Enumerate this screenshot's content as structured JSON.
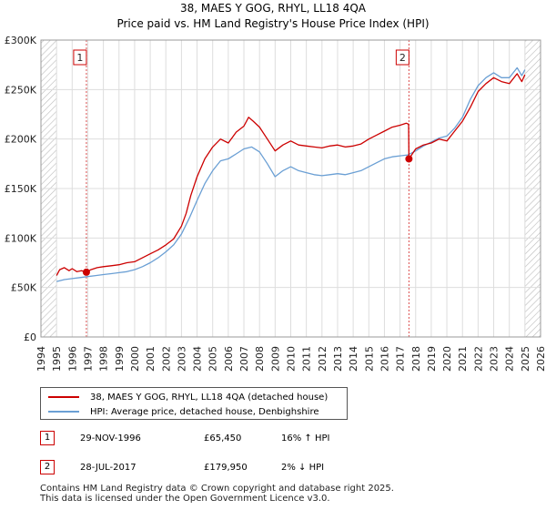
{
  "chart_data": {
    "type": "line",
    "title": "38, MAES Y GOG, RHYL, LL18 4QA",
    "subtitle": "Price paid vs. HM Land Registry's House Price Index (HPI)",
    "xlim": [
      1994,
      2026
    ],
    "ylim": [
      0,
      300000
    ],
    "x_ticks": [
      "1994",
      "1995",
      "1996",
      "1997",
      "1998",
      "1999",
      "2000",
      "2001",
      "2002",
      "2003",
      "2004",
      "2005",
      "2006",
      "2007",
      "2008",
      "2009",
      "2010",
      "2011",
      "2012",
      "2013",
      "2014",
      "2015",
      "2016",
      "2017",
      "2018",
      "2019",
      "2020",
      "2021",
      "2022",
      "2023",
      "2024",
      "2025",
      "2026"
    ],
    "y_ticks": [
      {
        "value": 0,
        "label": "£0"
      },
      {
        "value": 50000,
        "label": "£50K"
      },
      {
        "value": 100000,
        "label": "£100K"
      },
      {
        "value": 150000,
        "label": "£150K"
      },
      {
        "value": 200000,
        "label": "£200K"
      },
      {
        "value": 250000,
        "label": "£250K"
      },
      {
        "value": 300000,
        "label": "£300K"
      }
    ],
    "hatched_before": 1995,
    "hatched_after": 2025,
    "series": [
      {
        "name": "38, MAES Y GOG, RHYL, LL18 4QA (detached house)",
        "color": "#cc0000",
        "points": [
          [
            1995.0,
            62000
          ],
          [
            1995.2,
            68000
          ],
          [
            1995.5,
            70000
          ],
          [
            1995.8,
            67000
          ],
          [
            1996.0,
            69000
          ],
          [
            1996.3,
            66000
          ],
          [
            1996.6,
            67000
          ],
          [
            1996.91,
            65450
          ],
          [
            1997.2,
            68000
          ],
          [
            1997.6,
            70000
          ],
          [
            1998.0,
            71000
          ],
          [
            1998.5,
            72000
          ],
          [
            1999.0,
            73000
          ],
          [
            1999.5,
            75000
          ],
          [
            2000.0,
            76000
          ],
          [
            2000.5,
            80000
          ],
          [
            2001.0,
            84000
          ],
          [
            2001.5,
            88000
          ],
          [
            2002.0,
            93000
          ],
          [
            2002.5,
            99000
          ],
          [
            2003.0,
            112000
          ],
          [
            2003.3,
            125000
          ],
          [
            2003.6,
            143000
          ],
          [
            2004.0,
            162000
          ],
          [
            2004.5,
            180000
          ],
          [
            2005.0,
            192000
          ],
          [
            2005.5,
            200000
          ],
          [
            2006.0,
            196000
          ],
          [
            2006.5,
            207000
          ],
          [
            2007.0,
            213000
          ],
          [
            2007.3,
            222000
          ],
          [
            2007.6,
            218000
          ],
          [
            2008.0,
            212000
          ],
          [
            2008.5,
            200000
          ],
          [
            2009.0,
            188000
          ],
          [
            2009.5,
            194000
          ],
          [
            2010.0,
            198000
          ],
          [
            2010.5,
            194000
          ],
          [
            2011.0,
            193000
          ],
          [
            2011.5,
            192000
          ],
          [
            2012.0,
            191000
          ],
          [
            2012.5,
            193000
          ],
          [
            2013.0,
            194000
          ],
          [
            2013.5,
            192000
          ],
          [
            2014.0,
            193000
          ],
          [
            2014.5,
            195000
          ],
          [
            2015.0,
            200000
          ],
          [
            2015.5,
            204000
          ],
          [
            2016.0,
            208000
          ],
          [
            2016.5,
            212000
          ],
          [
            2017.0,
            214000
          ],
          [
            2017.4,
            216000
          ],
          [
            2017.55,
            215000
          ],
          [
            2017.57,
            179950
          ],
          [
            2018.0,
            190000
          ],
          [
            2018.5,
            194000
          ],
          [
            2019.0,
            196000
          ],
          [
            2019.5,
            200000
          ],
          [
            2020.0,
            198000
          ],
          [
            2020.5,
            208000
          ],
          [
            2021.0,
            218000
          ],
          [
            2021.5,
            232000
          ],
          [
            2022.0,
            248000
          ],
          [
            2022.5,
            256000
          ],
          [
            2023.0,
            262000
          ],
          [
            2023.5,
            258000
          ],
          [
            2024.0,
            256000
          ],
          [
            2024.5,
            266000
          ],
          [
            2024.8,
            258000
          ],
          [
            2025.0,
            265000
          ]
        ]
      },
      {
        "name": "HPI: Average price, detached house, Denbighshire",
        "color": "#6a9fd4",
        "points": [
          [
            1995.0,
            56000
          ],
          [
            1995.5,
            58000
          ],
          [
            1996.0,
            59000
          ],
          [
            1996.5,
            60000
          ],
          [
            1997.0,
            61000
          ],
          [
            1997.5,
            62000
          ],
          [
            1998.0,
            63000
          ],
          [
            1998.5,
            64000
          ],
          [
            1999.0,
            65000
          ],
          [
            1999.5,
            66000
          ],
          [
            2000.0,
            68000
          ],
          [
            2000.5,
            71000
          ],
          [
            2001.0,
            75000
          ],
          [
            2001.5,
            80000
          ],
          [
            2002.0,
            86000
          ],
          [
            2002.5,
            93000
          ],
          [
            2003.0,
            104000
          ],
          [
            2003.5,
            120000
          ],
          [
            2004.0,
            138000
          ],
          [
            2004.5,
            155000
          ],
          [
            2005.0,
            168000
          ],
          [
            2005.5,
            178000
          ],
          [
            2006.0,
            180000
          ],
          [
            2006.5,
            185000
          ],
          [
            2007.0,
            190000
          ],
          [
            2007.5,
            192000
          ],
          [
            2008.0,
            187000
          ],
          [
            2008.5,
            175000
          ],
          [
            2009.0,
            162000
          ],
          [
            2009.5,
            168000
          ],
          [
            2010.0,
            172000
          ],
          [
            2010.5,
            168000
          ],
          [
            2011.0,
            166000
          ],
          [
            2011.5,
            164000
          ],
          [
            2012.0,
            163000
          ],
          [
            2012.5,
            164000
          ],
          [
            2013.0,
            165000
          ],
          [
            2013.5,
            164000
          ],
          [
            2014.0,
            166000
          ],
          [
            2014.5,
            168000
          ],
          [
            2015.0,
            172000
          ],
          [
            2015.5,
            176000
          ],
          [
            2016.0,
            180000
          ],
          [
            2016.5,
            182000
          ],
          [
            2017.0,
            183000
          ],
          [
            2017.5,
            184000
          ],
          [
            2018.0,
            188000
          ],
          [
            2018.5,
            193000
          ],
          [
            2019.0,
            197000
          ],
          [
            2019.5,
            201000
          ],
          [
            2020.0,
            203000
          ],
          [
            2020.5,
            211000
          ],
          [
            2021.0,
            222000
          ],
          [
            2021.5,
            240000
          ],
          [
            2022.0,
            254000
          ],
          [
            2022.5,
            262000
          ],
          [
            2023.0,
            267000
          ],
          [
            2023.5,
            262000
          ],
          [
            2024.0,
            262000
          ],
          [
            2024.5,
            272000
          ],
          [
            2024.8,
            264000
          ],
          [
            2025.0,
            270000
          ]
        ]
      }
    ],
    "annotations": [
      {
        "label": "1",
        "x": 1996.91,
        "y": 65450
      },
      {
        "label": "2",
        "x": 2017.57,
        "y": 179950
      }
    ]
  },
  "legend": {
    "property_label": "38, MAES Y GOG, RHYL, LL18 4QA (detached house)",
    "hpi_label": "HPI: Average price, detached house, Denbighshire"
  },
  "sales": [
    {
      "num": "1",
      "date": "29-NOV-1996",
      "price": "£65,450",
      "hpi": "16% ↑ HPI"
    },
    {
      "num": "2",
      "date": "28-JUL-2017",
      "price": "£179,950",
      "hpi": "2% ↓ HPI"
    }
  ],
  "footer": {
    "line1": "Contains HM Land Registry data © Crown copyright and database right 2025.",
    "line2": "This data is licensed under the Open Government Licence v3.0."
  },
  "colors": {
    "property": "#cc0000",
    "hpi": "#6a9fd4",
    "grid": "#dddddd",
    "plot_bg": "#ffffff"
  }
}
